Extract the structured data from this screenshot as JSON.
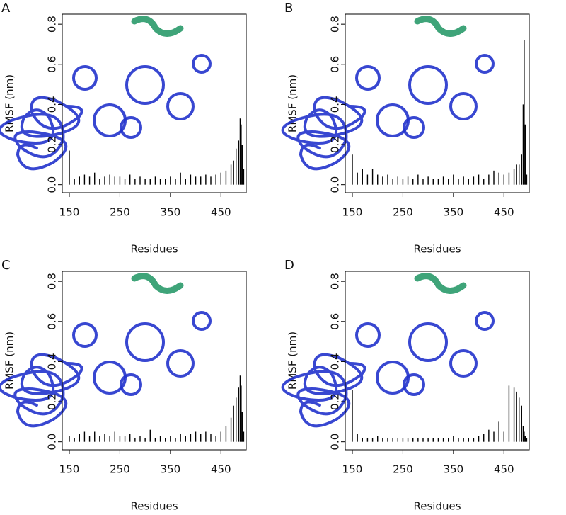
{
  "chart_data": [
    {
      "type": "bar",
      "label": "A",
      "xlabel": "Residues",
      "ylabel": "RMSF (nm)",
      "color": "#000000",
      "x": [
        150,
        160,
        170,
        180,
        190,
        200,
        210,
        220,
        230,
        240,
        250,
        260,
        270,
        280,
        290,
        300,
        310,
        320,
        330,
        340,
        350,
        360,
        370,
        380,
        390,
        400,
        410,
        420,
        430,
        440,
        450,
        460,
        470,
        475,
        480,
        485,
        488,
        490,
        492,
        495
      ],
      "values": [
        0.17,
        0.03,
        0.04,
        0.05,
        0.04,
        0.06,
        0.03,
        0.04,
        0.05,
        0.04,
        0.04,
        0.03,
        0.05,
        0.03,
        0.04,
        0.03,
        0.03,
        0.04,
        0.03,
        0.03,
        0.04,
        0.03,
        0.06,
        0.03,
        0.05,
        0.04,
        0.04,
        0.05,
        0.04,
        0.05,
        0.06,
        0.07,
        0.1,
        0.12,
        0.18,
        0.22,
        0.33,
        0.3,
        0.2,
        0.08
      ],
      "xlim": [
        136,
        500
      ],
      "ylim": [
        -0.04,
        0.85
      ],
      "xticks": [
        150,
        250,
        350,
        450
      ],
      "yticks": [
        {
          "value": 0,
          "label": "0.0"
        },
        0.2,
        0.4,
        0.6,
        0.8
      ]
    },
    {
      "type": "bar",
      "label": "B",
      "xlabel": "Residues",
      "ylabel": "RMSF (nm)",
      "color": "#000000",
      "x": [
        150,
        160,
        170,
        180,
        190,
        200,
        210,
        220,
        230,
        240,
        250,
        260,
        270,
        280,
        290,
        300,
        310,
        320,
        330,
        340,
        350,
        360,
        370,
        380,
        390,
        400,
        410,
        420,
        430,
        440,
        450,
        460,
        470,
        475,
        480,
        485,
        488,
        490,
        492,
        495
      ],
      "values": [
        0.15,
        0.06,
        0.08,
        0.05,
        0.08,
        0.05,
        0.04,
        0.05,
        0.03,
        0.04,
        0.03,
        0.04,
        0.03,
        0.05,
        0.03,
        0.04,
        0.03,
        0.03,
        0.04,
        0.03,
        0.05,
        0.03,
        0.04,
        0.03,
        0.04,
        0.05,
        0.03,
        0.05,
        0.07,
        0.06,
        0.05,
        0.06,
        0.08,
        0.1,
        0.1,
        0.15,
        0.4,
        0.72,
        0.3,
        0.05
      ],
      "xlim": [
        136,
        500
      ],
      "ylim": [
        -0.04,
        0.85
      ],
      "xticks": [
        150,
        250,
        350,
        450
      ],
      "yticks": [
        {
          "value": 0,
          "label": "0.0"
        },
        0.2,
        0.4,
        0.6,
        0.8
      ]
    },
    {
      "type": "bar",
      "label": "C",
      "xlabel": "Residues",
      "ylabel": "RMSF (nm)",
      "color": "#000000",
      "x": [
        150,
        160,
        170,
        180,
        190,
        200,
        210,
        220,
        230,
        240,
        250,
        260,
        270,
        280,
        290,
        300,
        310,
        320,
        330,
        340,
        350,
        360,
        370,
        380,
        390,
        400,
        410,
        420,
        430,
        440,
        450,
        460,
        470,
        475,
        480,
        485,
        488,
        490,
        492,
        495
      ],
      "values": [
        0.03,
        0.02,
        0.04,
        0.05,
        0.03,
        0.05,
        0.03,
        0.04,
        0.03,
        0.05,
        0.03,
        0.03,
        0.04,
        0.02,
        0.03,
        0.02,
        0.06,
        0.02,
        0.03,
        0.02,
        0.03,
        0.02,
        0.04,
        0.03,
        0.04,
        0.05,
        0.04,
        0.05,
        0.04,
        0.03,
        0.05,
        0.08,
        0.12,
        0.18,
        0.22,
        0.27,
        0.33,
        0.28,
        0.15,
        0.05
      ],
      "xlim": [
        136,
        500
      ],
      "ylim": [
        -0.04,
        0.85
      ],
      "xticks": [
        150,
        250,
        350,
        450
      ],
      "yticks": [
        {
          "value": 0,
          "label": "0.0"
        },
        0.2,
        0.4,
        0.6,
        0.8
      ]
    },
    {
      "type": "bar",
      "label": "D",
      "xlabel": "Residues",
      "ylabel": "RMSF (nm)",
      "color": "#000000",
      "x": [
        150,
        160,
        170,
        180,
        190,
        200,
        210,
        220,
        230,
        240,
        250,
        260,
        270,
        280,
        290,
        300,
        310,
        320,
        330,
        340,
        350,
        360,
        370,
        380,
        390,
        400,
        410,
        420,
        430,
        440,
        450,
        460,
        470,
        475,
        480,
        485,
        488,
        490,
        492,
        495
      ],
      "values": [
        0.26,
        0.04,
        0.02,
        0.02,
        0.02,
        0.03,
        0.02,
        0.02,
        0.02,
        0.02,
        0.02,
        0.02,
        0.02,
        0.02,
        0.02,
        0.02,
        0.02,
        0.02,
        0.02,
        0.02,
        0.03,
        0.02,
        0.02,
        0.02,
        0.02,
        0.03,
        0.04,
        0.06,
        0.05,
        0.1,
        0.05,
        0.28,
        0.27,
        0.25,
        0.22,
        0.18,
        0.08,
        0.05,
        0.03,
        0.02
      ],
      "xlim": [
        136,
        500
      ],
      "ylim": [
        -0.04,
        0.85
      ],
      "xticks": [
        150,
        250,
        350,
        450
      ],
      "yticks": [
        {
          "value": 0,
          "label": "0.0"
        },
        0.2,
        0.4,
        0.6,
        0.8
      ]
    }
  ]
}
